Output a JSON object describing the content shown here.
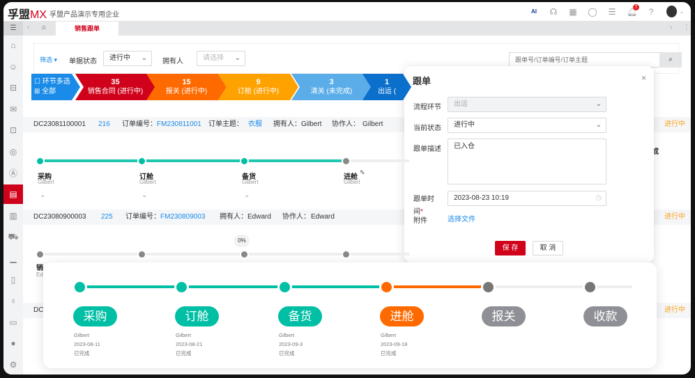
{
  "header": {
    "logo_main": "孚盟",
    "logo_accent": "MX",
    "company": "孚盟产品演示专用企业",
    "notification_count": "7",
    "icons": [
      "ai-icon",
      "headset-icon",
      "apps-grid-icon",
      "whatsapp-icon",
      "task-history-icon",
      "bell-icon",
      "help-icon",
      "avatar"
    ]
  },
  "tabs": {
    "active": "销售跟单"
  },
  "sidebar": {
    "items": [
      "menu-toggle-icon",
      "home-icon",
      "contact-icon",
      "org-chart-icon",
      "mail-icon",
      "bag-icon",
      "compass-icon",
      "a-icon",
      "clipboard-icon",
      "invoice-icon",
      "truck-icon",
      "chart-icon",
      "book-icon",
      "money-bag-icon",
      "monitor-icon",
      "whatsapp-icon",
      "settings-icon"
    ],
    "active_index": 8
  },
  "filter": {
    "filter_label": "筛选",
    "status_label": "单据状态",
    "status_value": "进行中",
    "owner_label": "拥有人",
    "owner_placeholder": "请选择",
    "search_placeholder": "跟单号/订单编号/订单主题"
  },
  "pipeline": {
    "multi_label": "环节多选",
    "all_label": "全部",
    "stages": [
      {
        "count": "35",
        "label": "销售合同 (进行中)",
        "color": "#d0021b"
      },
      {
        "count": "15",
        "label": "报关 (进行中)",
        "color": "#ff6a00"
      },
      {
        "count": "9",
        "label": "订舱 (进行中)",
        "color": "#ffa200"
      },
      {
        "count": "3",
        "label": "清关 (未完成)",
        "color": "#5aade8"
      },
      {
        "count": "1",
        "label": "出运 (",
        "color": "#0b6fcc"
      }
    ]
  },
  "orders": [
    {
      "id": "DC23081100001",
      "num": "216",
      "order_no_label": "订单编号：",
      "order_no": "FM230811001",
      "subject_label": "订单主题：",
      "subject": "衣服",
      "owner": "拥有人：Gilbert",
      "collab_label": "协作人：",
      "collab": "Gilbert",
      "status": "进行中",
      "steps": [
        {
          "name": "采购",
          "user": "Gilbert"
        },
        {
          "name": "订舱",
          "user": "Gilbert"
        },
        {
          "name": "备货",
          "user": "Gilbert"
        },
        {
          "name": "进舱",
          "user": "Gilbert"
        }
      ],
      "trailing": "成"
    },
    {
      "id": "DC23080900003",
      "num": "225",
      "order_no_label": "订单编号：",
      "order_no": "FM230809003",
      "owner": "拥有人：Edward",
      "collab_label": "协作人：",
      "collab": "Edward",
      "status": "进行中",
      "progress": "0%",
      "first_step": "销",
      "first_user": "Ed"
    },
    {
      "id": "DC",
      "status": "进行中"
    }
  ],
  "dialog": {
    "title": "跟单",
    "stage_label": "流程环节",
    "stage_value": "出运",
    "status_label": "当前状态",
    "status_value": "进行中",
    "desc_label": "跟单描述",
    "desc_value": "已入仓",
    "time_label": "跟单时",
    "time_label2": "间",
    "time_value": "2023-08-23 10:19",
    "attach_label": "附件",
    "attach_link": "选择文件",
    "save": "保 存",
    "cancel": "取 消"
  },
  "overlay": {
    "steps": [
      {
        "name": "采购",
        "user": "Gilbert",
        "date": "2023-08-11",
        "state": "已完成",
        "color": "#00bfa5"
      },
      {
        "name": "订舱",
        "user": "Gilbert",
        "date": "2023-08-21",
        "state": "已完成",
        "color": "#00bfa5"
      },
      {
        "name": "备货",
        "user": "Gilbert",
        "date": "2023-09-3",
        "state": "已完成",
        "color": "#00bfa5"
      },
      {
        "name": "进舱",
        "user": "Gilbert",
        "date": "2023-09-18",
        "state": "已完成",
        "color": "#ff6a00"
      },
      {
        "name": "报关",
        "color": "#8e9095"
      },
      {
        "name": "收款",
        "color": "#8e9095"
      }
    ]
  }
}
